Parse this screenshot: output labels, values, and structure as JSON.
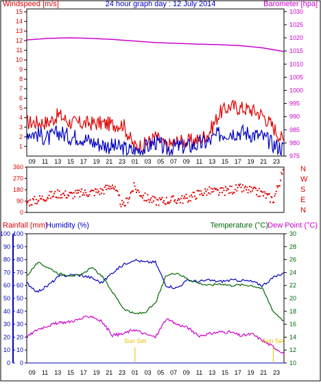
{
  "title": "24 hour graph day : 12 July 2014",
  "colors": {
    "wind": "#e00000",
    "gust": "#e00000",
    "avgwind": "#0000c0",
    "baro": "#cc00cc",
    "dir": "#e00000",
    "rain": "#0000c0",
    "humidity": "#0000c0",
    "temp": "#006600",
    "dew": "#cc00cc",
    "sun": "#e0c000",
    "grid": "#000000"
  },
  "time_labels": [
    "09",
    "11",
    "13",
    "15",
    "17",
    "19",
    "21",
    "23",
    "01",
    "03",
    "05",
    "07",
    "09",
    "11",
    "13",
    "15",
    "17",
    "19",
    "21",
    "23"
  ],
  "chart_data": [
    {
      "type": "line",
      "panel": "wind-baro",
      "left_axis": {
        "label": "Windspeed [m/s]",
        "ticks": [
          "1",
          "2",
          "3",
          "4",
          "5",
          "6",
          "7",
          "8",
          "9",
          "10",
          "11",
          "12",
          "13",
          "14",
          "15"
        ],
        "range": [
          0,
          15.3
        ]
      },
      "right_axis": {
        "label": "Barometer [hpa]",
        "ticks": [
          "975",
          "980",
          "985",
          "990",
          "995",
          "1000",
          "1005",
          "1010",
          "1015",
          "1020",
          "1025",
          "1030"
        ],
        "range": [
          975,
          1031
        ]
      },
      "series": [
        {
          "name": "gust",
          "x": [
            0,
            1,
            2,
            3,
            4,
            5,
            6,
            7,
            8,
            9,
            10,
            11,
            12,
            13,
            14,
            15,
            16,
            17,
            18,
            19,
            20,
            21,
            22,
            23,
            24
          ],
          "values": [
            3.5,
            3.5,
            3.5,
            4.3,
            3.5,
            3.4,
            3.4,
            3.4,
            3.3,
            3.3,
            1.0,
            1.2,
            2.0,
            1.0,
            1.5,
            1.5,
            1.7,
            2.4,
            4.5,
            5.2,
            5.0,
            4.8,
            4.3,
            3.0,
            1.5
          ]
        },
        {
          "name": "average",
          "x": [
            0,
            1,
            2,
            3,
            4,
            5,
            6,
            7,
            8,
            9,
            10,
            11,
            12,
            13,
            14,
            15,
            16,
            17,
            18,
            19,
            20,
            21,
            22,
            23,
            24
          ],
          "values": [
            2.5,
            2.3,
            1.8,
            2.5,
            2.0,
            2.0,
            1.5,
            1.2,
            1.0,
            0.8,
            0.5,
            0.8,
            1.5,
            0.7,
            1.0,
            1.0,
            1.2,
            1.5,
            2.3,
            2.5,
            2.5,
            2.3,
            2.0,
            1.2,
            0.8
          ]
        },
        {
          "name": "barometer",
          "x": [
            0,
            2,
            4,
            6,
            8,
            10,
            12,
            14,
            16,
            18,
            20,
            22,
            24
          ],
          "values": [
            1019.2,
            1019.8,
            1020.0,
            1019.8,
            1019.4,
            1018.8,
            1018.2,
            1017.9,
            1017.6,
            1017.4,
            1017.0,
            1016.2,
            1014.8
          ]
        }
      ]
    },
    {
      "type": "scatter",
      "panel": "wind-direction",
      "axis": {
        "ticks": [
          "0",
          "90",
          "180",
          "270",
          "360"
        ],
        "range": [
          0,
          360
        ]
      },
      "compass": [
        "N",
        "W",
        "S",
        "E",
        "N"
      ],
      "series": [
        {
          "name": "direction",
          "x": [
            0,
            1,
            2,
            3,
            4,
            5,
            6,
            7,
            8,
            9,
            10,
            11,
            12,
            13,
            14,
            15,
            16,
            17,
            18,
            19,
            20,
            21,
            22,
            23,
            24
          ],
          "values": [
            80,
            100,
            130,
            150,
            140,
            150,
            160,
            170,
            220,
            40,
            200,
            120,
            90,
            95,
            100,
            110,
            150,
            170,
            160,
            180,
            190,
            170,
            150,
            100,
            340
          ]
        }
      ]
    },
    {
      "type": "line",
      "panel": "rain-humidity-temp",
      "left_axis": {
        "label": "Rainfall (mm)",
        "ticks": [
          "0",
          "10",
          "20",
          "30",
          "40",
          "50",
          "60",
          "70",
          "80",
          "90",
          "100"
        ],
        "range": [
          0,
          100
        ]
      },
      "left_axis2": {
        "label": "Humidity (%)",
        "ticks": [
          "0",
          "10",
          "20",
          "30",
          "40",
          "50",
          "60",
          "70",
          "80",
          "90",
          "100"
        ],
        "range": [
          0,
          100
        ]
      },
      "right_axis": {
        "label": "Temperature (°C)",
        "ticks": [
          "10",
          "12",
          "14",
          "16",
          "18",
          "20",
          "22",
          "24",
          "26",
          "28",
          "30"
        ],
        "range": [
          10,
          30
        ]
      },
      "right_label2": "Dew Point (°C)",
      "sun_labels": [
        "Sun Set",
        "Sun Set"
      ],
      "series": [
        {
          "name": "humidity",
          "x": [
            0,
            1,
            2,
            3,
            4,
            5,
            6,
            7,
            8,
            9,
            10,
            11,
            12,
            13,
            14,
            15,
            16,
            17,
            18,
            19,
            20,
            21,
            22,
            23,
            24
          ],
          "values": [
            62,
            55,
            60,
            67,
            68,
            68,
            66,
            62,
            70,
            76,
            80,
            78,
            78,
            60,
            58,
            64,
            63,
            64,
            63,
            64,
            64,
            63,
            60,
            66,
            70
          ]
        },
        {
          "name": "temperature",
          "x": [
            0,
            1,
            2,
            3,
            4,
            5,
            6,
            7,
            8,
            9,
            10,
            11,
            12,
            13,
            14,
            15,
            16,
            17,
            18,
            19,
            20,
            21,
            22,
            23,
            24
          ],
          "values": [
            23.5,
            25.5,
            24.8,
            23.8,
            23.6,
            23.5,
            24.8,
            23.5,
            21.0,
            18.5,
            17.6,
            17.8,
            19.2,
            23.5,
            24.0,
            23.0,
            22.4,
            22.0,
            22.3,
            22.0,
            22.1,
            22.0,
            21.5,
            18.0,
            16.5
          ]
        },
        {
          "name": "dew point",
          "x": [
            0,
            1,
            2,
            3,
            4,
            5,
            6,
            7,
            8,
            9,
            10,
            11,
            12,
            13,
            14,
            15,
            16,
            17,
            18,
            19,
            20,
            21,
            22,
            23,
            24
          ],
          "values": [
            14.0,
            15.2,
            15.8,
            16.2,
            16.4,
            16.8,
            17.3,
            16.4,
            14.3,
            14.5,
            15.2,
            14.5,
            14.0,
            16.8,
            16.0,
            15.5,
            14.2,
            14.5,
            14.8,
            14.8,
            14.2,
            14.5,
            13.5,
            12.5,
            11.5
          ]
        },
        {
          "name": "rainfall",
          "x": [
            0,
            24
          ],
          "values": [
            0,
            0
          ]
        }
      ]
    }
  ]
}
